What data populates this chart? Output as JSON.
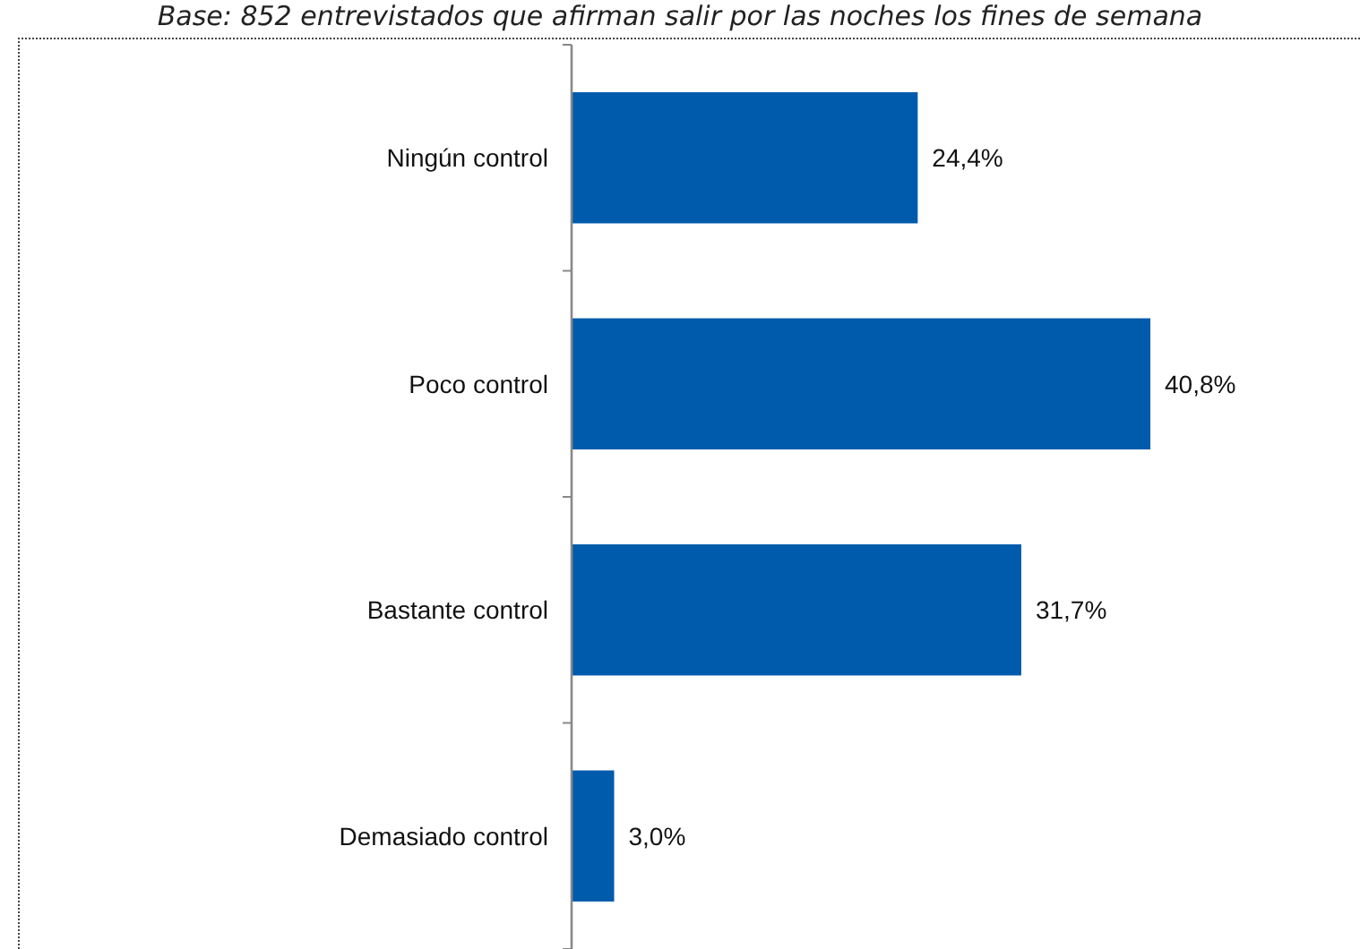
{
  "chart_data": {
    "type": "bar",
    "orientation": "horizontal",
    "subtitle": "Base: 852 entrevistados que afirman salir por las noches los fines de semana",
    "categories": [
      "Ningún control",
      "Poco control",
      "Bastante control",
      "Demasiado control"
    ],
    "values": [
      24.4,
      40.8,
      31.7,
      3.0
    ],
    "value_labels": [
      "24,4%",
      "40,8%",
      "31,7%",
      "3,0%"
    ],
    "color": "#005bac",
    "tick_labels": "y"
  }
}
